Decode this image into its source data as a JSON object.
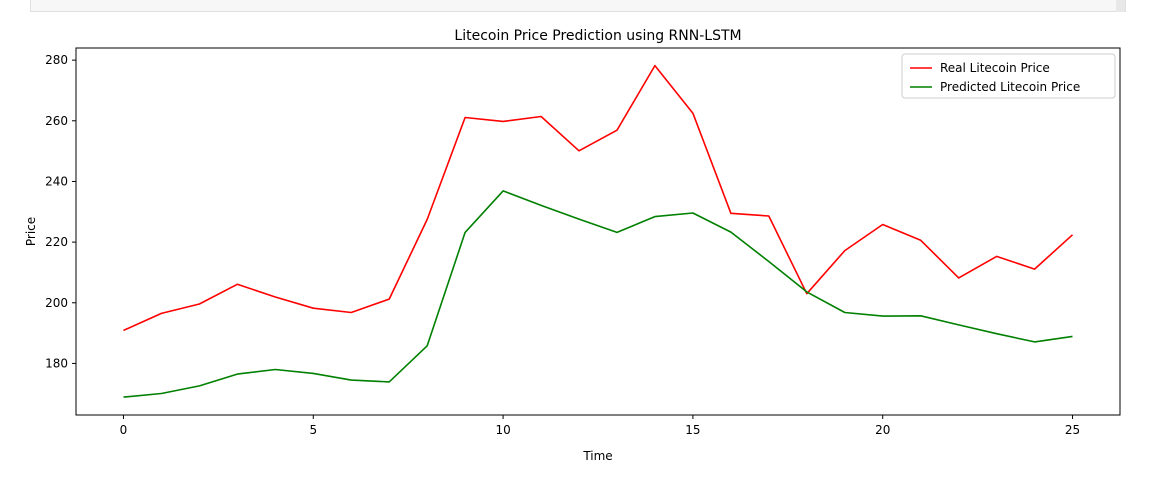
{
  "chart_data": {
    "type": "line",
    "title": "Litecoin Price Prediction using RNN-LSTM",
    "xlabel": "Time",
    "ylabel": "Price",
    "xlim": [
      -1.25,
      26.25
    ],
    "ylim": [
      163,
      284
    ],
    "xticks": [
      0,
      5,
      10,
      15,
      20,
      25
    ],
    "yticks": [
      180,
      200,
      220,
      240,
      260,
      280
    ],
    "grid": false,
    "legend_position": "upper right",
    "x": [
      0,
      1,
      2,
      3,
      4,
      5,
      6,
      7,
      8,
      9,
      10,
      11,
      12,
      13,
      14,
      15,
      16,
      17,
      18,
      19,
      20,
      21,
      22,
      23,
      24,
      25
    ],
    "series": [
      {
        "name": "Real Litecoin Price",
        "color": "#ff0000",
        "values": [
          190.9,
          196.5,
          199.6,
          206.1,
          201.9,
          198.2,
          196.8,
          201.2,
          227.5,
          261.1,
          259.8,
          261.4,
          250.1,
          256.9,
          278.2,
          262.5,
          229.5,
          228.6,
          203.0,
          217.2,
          225.8,
          220.6,
          208.2,
          215.3,
          211.1,
          222.4
        ]
      },
      {
        "name": "Predicted Litecoin Price",
        "color": "#008000",
        "values": [
          168.9,
          170.1,
          172.6,
          176.5,
          178.0,
          176.7,
          174.5,
          173.9,
          185.8,
          223.2,
          236.9,
          232.1,
          227.6,
          223.2,
          228.4,
          229.6,
          223.3,
          213.6,
          203.6,
          196.8,
          195.6,
          195.7,
          192.7,
          189.8,
          187.1,
          188.9
        ]
      }
    ]
  }
}
